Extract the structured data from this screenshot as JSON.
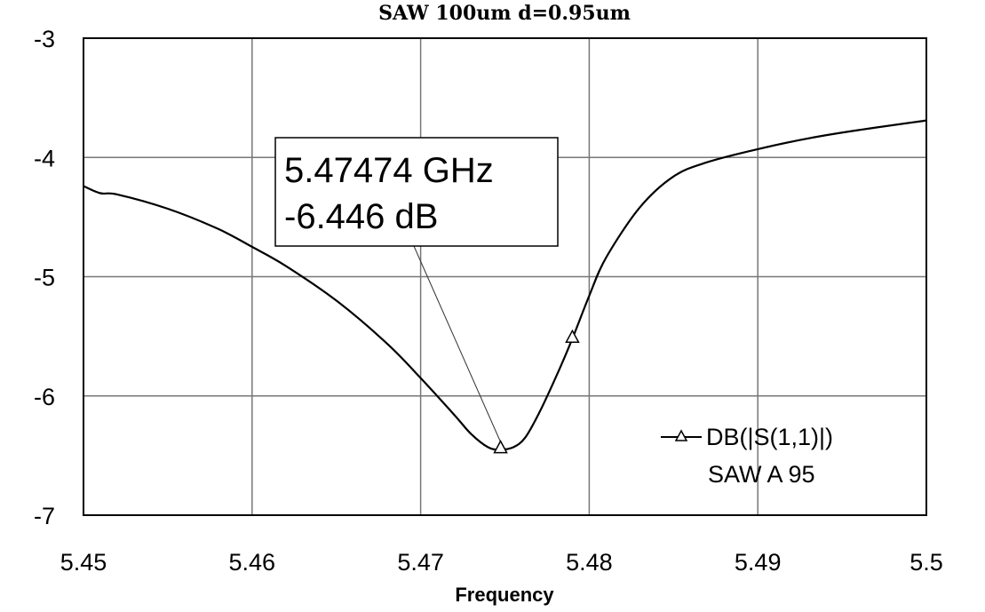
{
  "chart_data": {
    "type": "line",
    "title": "SAW 100um d=0.95um",
    "xlabel": "Frequency",
    "ylabel": "",
    "xlim": [
      5.45,
      5.5
    ],
    "ylim": [
      -7,
      -3
    ],
    "xticks": [
      "5.45",
      "5.46",
      "5.47",
      "5.48",
      "5.49",
      "5.5"
    ],
    "yticks": [
      "-3",
      "-4",
      "-5",
      "-6",
      "-7"
    ],
    "grid": true,
    "legend_position": "bottom-right",
    "series": [
      {
        "name": "DB(|S(1,1)|)",
        "subtitle": "SAW A 95",
        "color": "#000000",
        "x": [
          5.45,
          5.451,
          5.452,
          5.455,
          5.458,
          5.46,
          5.462,
          5.465,
          5.468,
          5.47,
          5.472,
          5.473,
          5.474,
          5.4747,
          5.4755,
          5.4762,
          5.477,
          5.478,
          5.479,
          5.48,
          5.481,
          5.483,
          5.485,
          5.487,
          5.49,
          5.493,
          5.496,
          5.5
        ],
        "y": [
          -4.24,
          -4.3,
          -4.31,
          -4.43,
          -4.6,
          -4.75,
          -4.91,
          -5.2,
          -5.56,
          -5.85,
          -6.16,
          -6.32,
          -6.43,
          -6.45,
          -6.43,
          -6.35,
          -6.15,
          -5.85,
          -5.52,
          -5.16,
          -4.84,
          -4.42,
          -4.16,
          -4.04,
          -3.93,
          -3.84,
          -3.77,
          -3.69
        ]
      }
    ],
    "markers": [
      {
        "x": 5.47474,
        "y": -6.446,
        "label_freq": "5.47474 GHz",
        "label_db": "-6.446 dB"
      },
      {
        "x": 5.479,
        "y": -5.52
      }
    ]
  }
}
